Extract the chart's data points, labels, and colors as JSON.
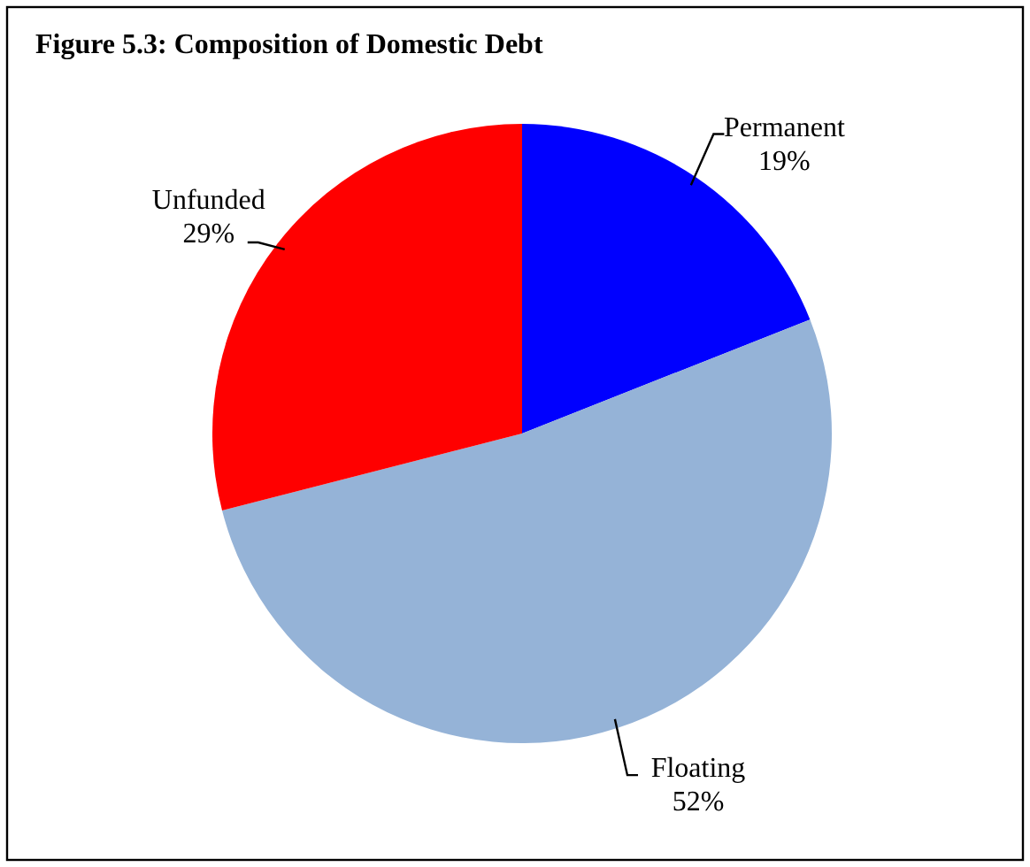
{
  "chart_data": {
    "type": "pie",
    "title": "Figure 5.3: Composition of Domestic Debt",
    "categories": [
      "Permanent",
      "Floating",
      "Unfunded"
    ],
    "values": [
      19,
      52,
      29
    ],
    "value_labels": [
      "19%",
      "52%",
      "29%"
    ],
    "colors": [
      "#0000ff",
      "#95b3d7",
      "#ff0000"
    ]
  }
}
